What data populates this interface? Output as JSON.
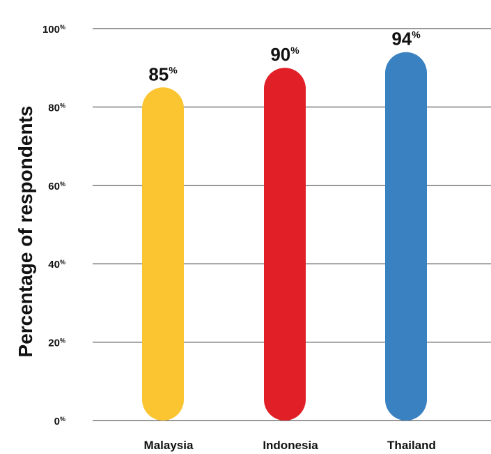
{
  "chart_data": {
    "type": "bar",
    "categories": [
      "Malaysia",
      "Indonesia",
      "Thailand"
    ],
    "values": [
      85,
      90,
      94
    ],
    "value_labels": [
      "85",
      "90",
      "94"
    ],
    "value_suffix": "%",
    "colors": [
      "#fbc531",
      "#e11f26",
      "#3a81c2"
    ],
    "title": "",
    "xlabel": "",
    "ylabel": "Percentage of respondents",
    "ylim": [
      0,
      100
    ],
    "yticks": [
      0,
      20,
      40,
      60,
      80,
      100
    ],
    "ytick_labels": [
      "0",
      "20",
      "40",
      "60",
      "80",
      "100"
    ],
    "ytick_suffix": "%",
    "grid": true,
    "bar_shape": "rounded"
  }
}
